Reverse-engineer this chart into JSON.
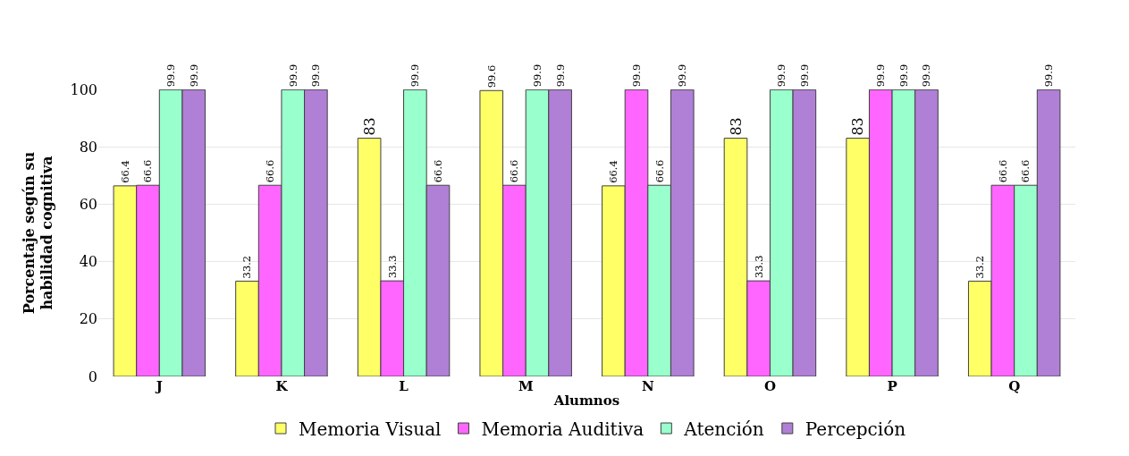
{
  "chart_data": {
    "type": "bar",
    "xlabel": "Alumnos",
    "ylabel": "Porcentaje según su habilidad cognitiva",
    "categories": [
      "J",
      "K",
      "L",
      "M",
      "N",
      "O",
      "P",
      "Q"
    ],
    "series": [
      {
        "name": "Memoria Visual",
        "color": "#ffff66",
        "values": [
          66.4,
          33.2,
          83,
          99.6,
          66.4,
          83,
          83,
          33.2
        ]
      },
      {
        "name": "Memoria Auditiva",
        "color": "#ff66ff",
        "values": [
          66.6,
          66.6,
          33.3,
          66.6,
          99.9,
          33.3,
          99.9,
          66.6
        ]
      },
      {
        "name": "Atención",
        "color": "#99ffcc",
        "values": [
          99.9,
          99.9,
          99.9,
          99.9,
          66.6,
          99.9,
          99.9,
          66.6
        ]
      },
      {
        "name": "Percepción",
        "color": "#b07fd6",
        "values": [
          99.9,
          99.9,
          66.6,
          99.9,
          99.9,
          99.9,
          99.9,
          99.9
        ]
      }
    ],
    "ylim": [
      0,
      100
    ],
    "yticks": [
      0,
      20,
      40,
      60,
      80,
      100
    ],
    "grid": "y",
    "legend": "bottom",
    "data_labels": true
  }
}
